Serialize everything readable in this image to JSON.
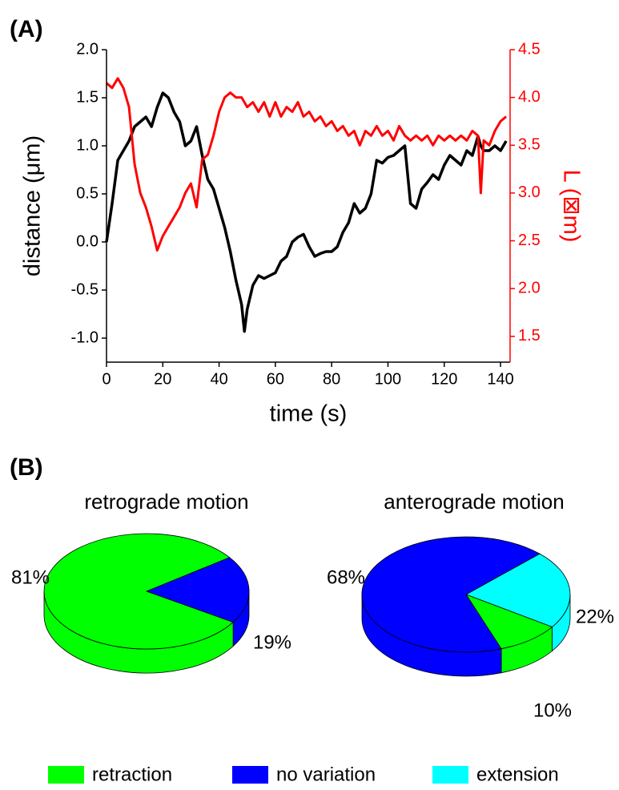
{
  "chart_data": [
    {
      "type": "line",
      "panel_label": "(A)",
      "xlabel": "time (s)",
      "ylabel": "distance (μm)",
      "y2label": "L (⊠m)",
      "xlim": [
        0,
        143.4
      ],
      "xticks": [
        0,
        20,
        40,
        60,
        80,
        100,
        120,
        140
      ],
      "ylim": [
        -1.25,
        2.0
      ],
      "yticks": [
        {
          "value": -1,
          "label": "-1.0"
        },
        -0.5,
        {
          "value": 0,
          "label": "0.0"
        },
        0.5,
        {
          "value": 1,
          "label": "1.0"
        },
        1.5,
        {
          "value": 2,
          "label": "2.0"
        }
      ],
      "y2lim": [
        1.23,
        4.5
      ],
      "y2ticks": [
        1.5,
        {
          "value": 2,
          "label": "2.0"
        },
        2.5,
        {
          "value": 3,
          "label": "3.0"
        },
        3.5,
        {
          "value": 4,
          "label": "4.0"
        },
        4.5
      ],
      "x": [
        0,
        2,
        4,
        6,
        8,
        10,
        12,
        14,
        16,
        18,
        20,
        22,
        24,
        26,
        28,
        30,
        32,
        34,
        36,
        38,
        40,
        42,
        44,
        46,
        48,
        49,
        50,
        52,
        54,
        56,
        58,
        60,
        62,
        64,
        66,
        68,
        70,
        72,
        74,
        76,
        78,
        80,
        82,
        84,
        86,
        88,
        90,
        92,
        94,
        96,
        98,
        100,
        102,
        104,
        106,
        108,
        110,
        112,
        114,
        116,
        118,
        120,
        122,
        124,
        126,
        128,
        130,
        132,
        133,
        134,
        136,
        138,
        140,
        142
      ],
      "series": [
        {
          "color": "#000000",
          "values": [
            0.0,
            0.4,
            0.85,
            0.95,
            1.05,
            1.2,
            1.25,
            1.3,
            1.2,
            1.4,
            1.55,
            1.5,
            1.35,
            1.25,
            1.0,
            1.05,
            1.2,
            0.9,
            0.65,
            0.55,
            0.35,
            0.15,
            -0.1,
            -0.4,
            -0.65,
            -0.93,
            -0.7,
            -0.45,
            -0.35,
            -0.38,
            -0.35,
            -0.32,
            -0.2,
            -0.15,
            0.0,
            0.05,
            0.08,
            -0.05,
            -0.15,
            -0.12,
            -0.1,
            -0.1,
            -0.05,
            0.1,
            0.2,
            0.4,
            0.3,
            0.35,
            0.5,
            0.85,
            0.82,
            0.88,
            0.9,
            0.95,
            1.0,
            0.4,
            0.35,
            0.55,
            0.62,
            0.7,
            0.65,
            0.8,
            0.9,
            0.85,
            0.8,
            0.95,
            0.9,
            1.1,
            1.0,
            0.95,
            0.95,
            1.0,
            0.95,
            1.05
          ]
        },
        {
          "color": "#ff0000",
          "axis": "y2",
          "values": [
            4.15,
            4.1,
            4.2,
            4.1,
            3.9,
            3.3,
            3.0,
            2.85,
            2.65,
            2.4,
            2.55,
            2.65,
            2.75,
            2.85,
            3.0,
            3.1,
            2.85,
            3.35,
            3.4,
            3.6,
            3.85,
            4.0,
            4.05,
            4.0,
            4.0,
            3.95,
            3.9,
            3.95,
            3.85,
            3.95,
            3.8,
            3.95,
            3.8,
            3.9,
            3.85,
            3.95,
            3.8,
            3.85,
            3.75,
            3.8,
            3.7,
            3.75,
            3.65,
            3.7,
            3.6,
            3.65,
            3.5,
            3.65,
            3.6,
            3.7,
            3.6,
            3.65,
            3.55,
            3.7,
            3.6,
            3.55,
            3.6,
            3.55,
            3.6,
            3.5,
            3.6,
            3.55,
            3.6,
            3.55,
            3.6,
            3.55,
            3.65,
            3.6,
            3.0,
            3.55,
            3.5,
            3.65,
            3.75,
            3.8
          ]
        }
      ]
    },
    {
      "type": "pie",
      "panel_label": "(B)",
      "title": "retrograde motion",
      "categories": [
        "retraction",
        "no variation"
      ],
      "colors": [
        "#00ff00",
        "#0000ff"
      ],
      "values": [
        81,
        19
      ],
      "value_labels": [
        "81%",
        "19%"
      ]
    },
    {
      "type": "pie",
      "title": "anterograde motion",
      "categories": [
        "retraction",
        "no variation",
        "extension"
      ],
      "colors": [
        "#00ff00",
        "#0000ff",
        "#00ffff"
      ],
      "values": [
        10,
        68,
        22
      ],
      "value_labels": [
        "10%",
        "68%",
        "22%"
      ]
    }
  ]
}
